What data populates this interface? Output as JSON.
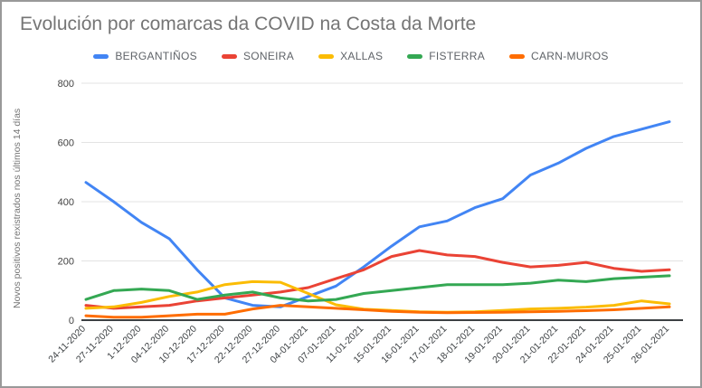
{
  "chart_data": {
    "type": "line",
    "title": "Evolución por comarcas da COVID na Costa da Morte",
    "xlabel": "",
    "ylabel": "Novos positivos rexistrados nos últimos 14 días",
    "ylim": [
      0,
      800
    ],
    "y_ticks": [
      0,
      200,
      400,
      600,
      800
    ],
    "grid": true,
    "legend_position": "top",
    "categories": [
      "24-11-2020",
      "27-11-2020",
      "1-12-2020",
      "04-12-2020",
      "10-12-2020",
      "17-12-2020",
      "22-12-2020",
      "27-12-2020",
      "04-01-2021",
      "07-01-2021",
      "11-01-2021",
      "15-01-2021",
      "16-01-2021",
      "17-01-2021",
      "18-01-2021",
      "19-01-2021",
      "20-01-2021",
      "21-01-2021",
      "22-01-2021",
      "24-01-2021",
      "25-01-2021",
      "26-01-2021"
    ],
    "series": [
      {
        "name": "BERGANTIÑOS",
        "color": "#4285F4",
        "values": [
          465,
          400,
          330,
          275,
          170,
          75,
          50,
          45,
          80,
          115,
          180,
          250,
          315,
          335,
          380,
          410,
          490,
          530,
          580,
          620,
          645,
          670
        ]
      },
      {
        "name": "SONEIRA",
        "color": "#EA4335",
        "values": [
          50,
          40,
          45,
          50,
          65,
          75,
          85,
          95,
          110,
          140,
          170,
          215,
          235,
          220,
          215,
          195,
          180,
          185,
          195,
          175,
          165,
          170
        ]
      },
      {
        "name": "XALLAS",
        "color": "#FBBC04",
        "values": [
          40,
          45,
          60,
          80,
          95,
          120,
          130,
          128,
          90,
          52,
          37,
          33,
          28,
          27,
          28,
          33,
          38,
          40,
          44,
          50,
          65,
          55
        ]
      },
      {
        "name": "FISTERRA",
        "color": "#34A853",
        "values": [
          70,
          100,
          105,
          100,
          70,
          85,
          95,
          75,
          65,
          70,
          90,
          100,
          110,
          120,
          120,
          120,
          125,
          135,
          130,
          140,
          145,
          150
        ]
      },
      {
        "name": "CARN-MUROS",
        "color": "#FF6D01",
        "values": [
          15,
          10,
          10,
          15,
          20,
          20,
          38,
          50,
          45,
          40,
          35,
          30,
          27,
          25,
          26,
          27,
          28,
          30,
          32,
          35,
          40,
          45
        ]
      }
    ]
  }
}
